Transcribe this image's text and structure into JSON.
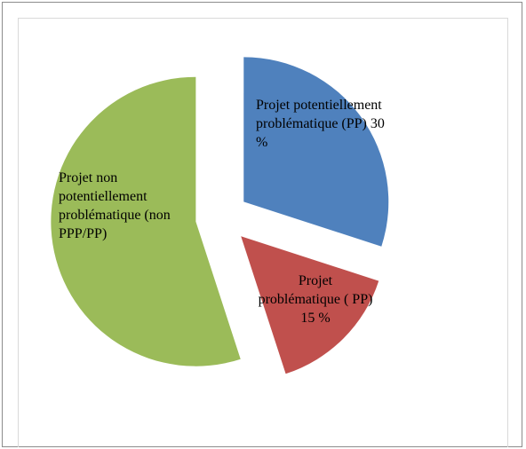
{
  "chart_data": {
    "type": "pie",
    "categories": [
      "Projet potentiellement problématique (PP) 30 %",
      "Projet problématique ( PP) 15 %",
      "Projet non potentiellement problématique (non PPP/PP)"
    ],
    "values": [
      30,
      15,
      55
    ],
    "colors": [
      "#4f81bd",
      "#c0504d",
      "#9bbb59"
    ]
  }
}
